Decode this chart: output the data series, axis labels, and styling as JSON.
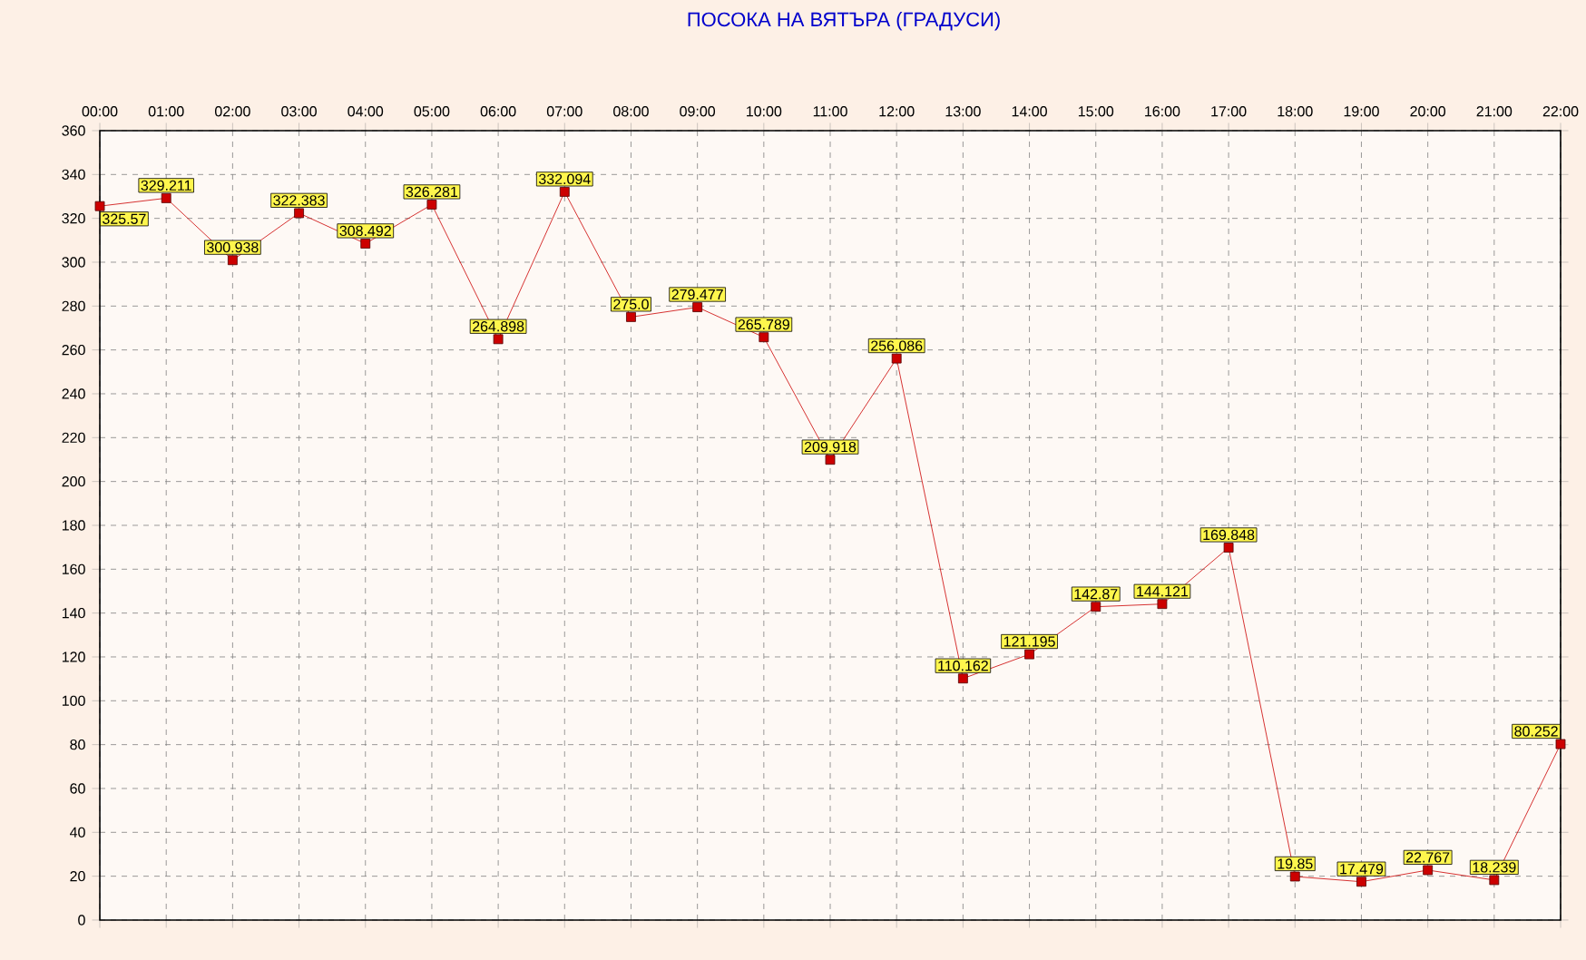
{
  "chart_data": {
    "type": "line",
    "title": "ПОСОКА НА ВЯТЪРА    (ГРАДУСИ)",
    "categories": [
      "00:00",
      "01:00",
      "02:00",
      "03:00",
      "04:00",
      "05:00",
      "06:00",
      "07:00",
      "08:00",
      "09:00",
      "10:00",
      "11:00",
      "12:00",
      "13:00",
      "14:00",
      "15:00",
      "16:00",
      "17:00",
      "18:00",
      "19:00",
      "20:00",
      "21:00",
      "22:00"
    ],
    "values": [
      325.57,
      329.211,
      300.938,
      322.383,
      308.492,
      326.281,
      264.898,
      332.094,
      275.0,
      279.477,
      265.789,
      209.918,
      256.086,
      110.162,
      121.195,
      142.87,
      144.121,
      169.848,
      19.85,
      17.479,
      22.767,
      18.239,
      80.252
    ],
    "value_labels": [
      "325.57",
      "329.211",
      "300.938",
      "322.383",
      "308.492",
      "326.281",
      "264.898",
      "332.094",
      "275.0",
      "279.477",
      "265.789",
      "209.918",
      "256.086",
      "110.162",
      "121.195",
      "142.87",
      "144.121",
      "169.848",
      "19.85",
      "17.479",
      "22.767",
      "18.239",
      "80.252"
    ],
    "color": "#cc0000",
    "marker": "square",
    "line_style": "solid",
    "ylim": [
      0,
      360
    ],
    "yticks": [
      0,
      20,
      40,
      60,
      80,
      100,
      120,
      140,
      160,
      180,
      200,
      220,
      240,
      260,
      280,
      300,
      320,
      340,
      360
    ],
    "grid": true
  }
}
